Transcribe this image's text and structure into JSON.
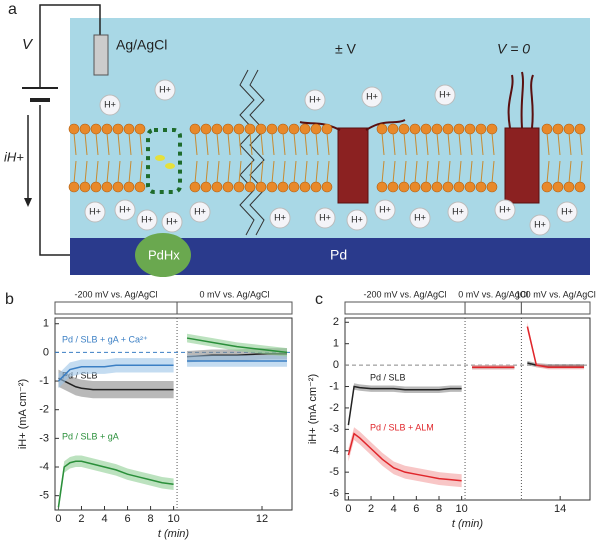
{
  "figure_a": {
    "panel_label": "a",
    "voltage": "V",
    "electrode": "Ag/AgCl",
    "plus_minus_v": "± V",
    "v_zero": "V = 0",
    "current": "iH+",
    "hydride": "PdHx",
    "substrate": "Pd",
    "proton": "H+"
  },
  "chart_data": [
    {
      "type": "line",
      "panel_label": "b",
      "ylabel": "iH+ (mA cm⁻²)",
      "xlabel": "t (min)",
      "ylim": [
        -5.5,
        1.2
      ],
      "yticks": [
        1,
        0,
        -1,
        -2,
        -3,
        -4,
        -5
      ],
      "hline": {
        "value": 0,
        "color": "#3b7fc4"
      },
      "x_segments": [
        {
          "label": "-200 mV vs. Ag/AgCl",
          "xlim": [
            -0.3,
            10.3
          ],
          "xticks": [
            0,
            2,
            4,
            6,
            8,
            10
          ]
        },
        {
          "label": "0 mV vs. Ag/AgCl",
          "xlim": [
            10.3,
            12.6
          ],
          "xticks": [
            12
          ]
        }
      ],
      "x": [
        0,
        0.5,
        1,
        1.5,
        2,
        3,
        4,
        5,
        6,
        7,
        8,
        9,
        10,
        10.3,
        10.5,
        11,
        11.5,
        12,
        12.5
      ],
      "series": [
        {
          "name": "Pd / SLB",
          "color": "#222222",
          "band_color": "#8a8a8a",
          "values": [
            -0.9,
            -1.0,
            -1.1,
            -1.2,
            -1.25,
            -1.3,
            -1.3,
            -1.3,
            -1.3,
            -1.3,
            -1.3,
            -1.3,
            -1.3,
            null,
            -0.15,
            -0.1,
            -0.1,
            -0.05,
            -0.05
          ],
          "errors": [
            0.3,
            0.3,
            0.3,
            0.3,
            0.3,
            0.3,
            0.3,
            0.3,
            0.3,
            0.3,
            0.3,
            0.3,
            0.3,
            null,
            0.2,
            0.2,
            0.2,
            0.2,
            0.2
          ]
        },
        {
          "name": "Pd / SLB + gA + Ca²⁺",
          "color": "#3b7fc4",
          "band_color": "#9cc4e8",
          "values": [
            -1.0,
            -0.8,
            -0.6,
            -0.55,
            -0.5,
            -0.5,
            -0.5,
            -0.45,
            -0.45,
            -0.45,
            -0.45,
            -0.45,
            -0.45,
            null,
            -0.3,
            -0.3,
            -0.3,
            -0.3,
            -0.3
          ],
          "errors": [
            0.25,
            0.25,
            0.25,
            0.25,
            0.25,
            0.25,
            0.25,
            0.25,
            0.25,
            0.25,
            0.25,
            0.25,
            0.25,
            null,
            0.2,
            0.2,
            0.2,
            0.2,
            0.2
          ]
        },
        {
          "name": "Pd / SLB + gA",
          "color": "#2a8f3a",
          "band_color": "#8fcf95",
          "values": [
            -5.4,
            -4.0,
            -3.85,
            -3.8,
            -3.8,
            -3.9,
            -4.0,
            -4.1,
            -4.25,
            -4.35,
            -4.45,
            -4.55,
            -4.6,
            null,
            0.5,
            0.35,
            0.2,
            0.1,
            0.0
          ],
          "errors": [
            0.2,
            0.2,
            0.2,
            0.2,
            0.2,
            0.2,
            0.2,
            0.2,
            0.2,
            0.2,
            0.2,
            0.2,
            0.2,
            null,
            0.15,
            0.15,
            0.15,
            0.15,
            0.15
          ]
        }
      ]
    },
    {
      "type": "line",
      "panel_label": "c",
      "ylabel": "iH+ (mA cm⁻²)",
      "xlabel": "t (min)",
      "ylim": [
        -6.3,
        2.2
      ],
      "yticks": [
        2,
        1,
        0,
        -1,
        -2,
        -3,
        -4,
        -5,
        -6
      ],
      "hline": {
        "value": 0,
        "color": "#888888"
      },
      "x_segments": [
        {
          "label": "-200 mV vs. Ag/AgCl",
          "xlim": [
            -0.3,
            10.3
          ],
          "xticks": [
            0,
            2,
            4,
            6,
            8,
            10
          ]
        },
        {
          "label": "0 mV vs. Ag/AgCl",
          "xlim": [
            10.3,
            12.7
          ],
          "xticks": []
        },
        {
          "label": "100 mV vs. Ag/AgCl",
          "xlim": [
            12.7,
            15
          ],
          "xticks": [
            14
          ]
        }
      ],
      "x": [
        0,
        0.5,
        1,
        2,
        3,
        4,
        5,
        6,
        7,
        8,
        9,
        10,
        10.3,
        10.6,
        11.2,
        11.8,
        12.4,
        12.7,
        12.9,
        13.2,
        13.6,
        14,
        14.4,
        14.8
      ],
      "series": [
        {
          "name": "Pd / SLB",
          "color": "#222222",
          "band_color": "#8a8a8a",
          "values": [
            -2.8,
            -1.0,
            -1.05,
            -1.1,
            -1.1,
            -1.1,
            -1.15,
            -1.15,
            -1.15,
            -1.15,
            -1.1,
            -1.1,
            null,
            -0.1,
            -0.1,
            -0.1,
            -0.1,
            null,
            0.1,
            0,
            -0.05,
            -0.05,
            -0.05,
            -0.05
          ],
          "errors": [
            0.15,
            0.15,
            0.15,
            0.15,
            0.15,
            0.15,
            0.15,
            0.15,
            0.15,
            0.15,
            0.15,
            0.15,
            null,
            0.1,
            0.1,
            0.1,
            0.1,
            null,
            0.1,
            0.1,
            0.1,
            0.1,
            0.1,
            0.1
          ]
        },
        {
          "name": "Pd / SLB + ALM",
          "color": "#e0262b",
          "band_color": "#f4a0a0",
          "values": [
            -4.2,
            -3.2,
            -3.4,
            -3.9,
            -4.4,
            -4.8,
            -5.0,
            -5.1,
            -5.2,
            -5.3,
            -5.35,
            -5.4,
            null,
            -0.1,
            -0.1,
            -0.1,
            -0.1,
            null,
            1.8,
            0,
            -0.1,
            -0.1,
            -0.1,
            -0.1
          ],
          "errors": [
            0.3,
            0.3,
            0.3,
            0.3,
            0.3,
            0.3,
            0.3,
            0.3,
            0.3,
            0.3,
            0.3,
            0.3,
            null,
            0.1,
            0.1,
            0.1,
            0.1,
            null,
            0.2,
            0.1,
            0.1,
            0.1,
            0.1,
            0.1
          ]
        }
      ]
    }
  ]
}
